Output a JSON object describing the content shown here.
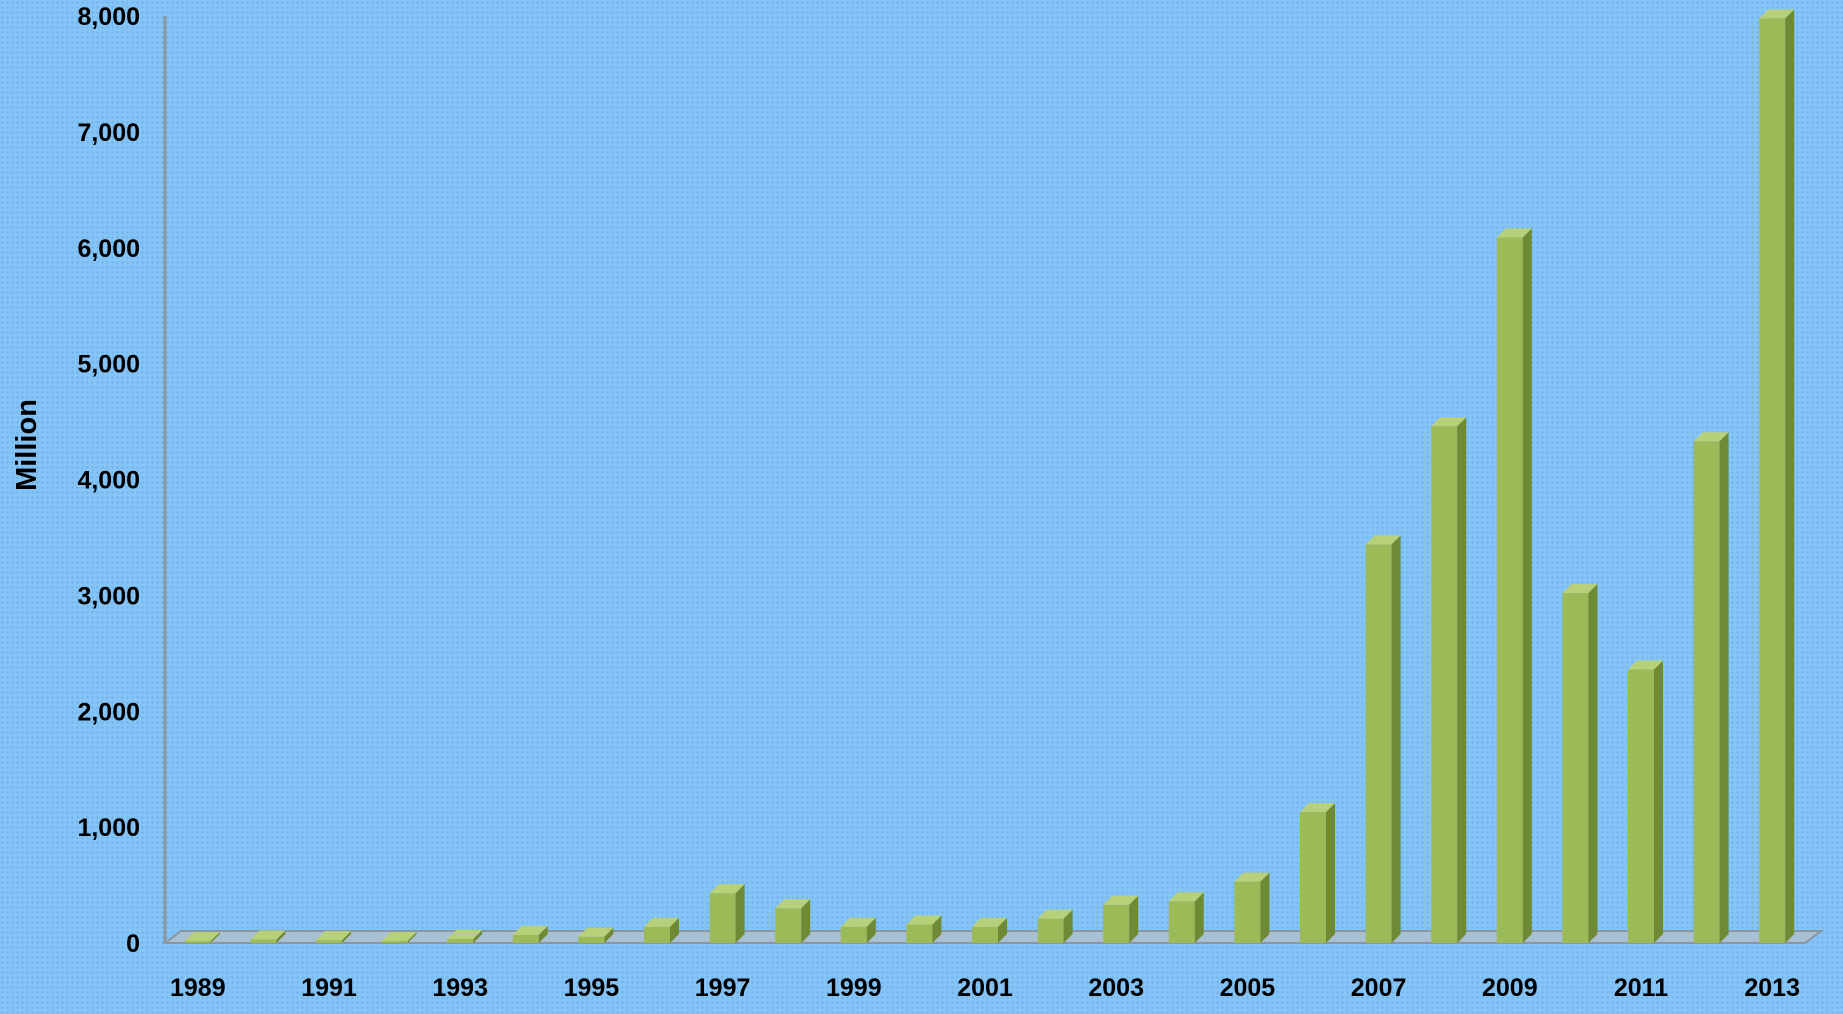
{
  "chart_data": {
    "type": "bar",
    "title": "",
    "xlabel": "",
    "ylabel": "Million",
    "ylim": [
      0,
      8000
    ],
    "yticks": [
      0,
      1000,
      2000,
      3000,
      4000,
      5000,
      6000,
      7000,
      8000
    ],
    "ytick_labels": [
      "0",
      "1,000",
      "2,000",
      "3,000",
      "4,000",
      "5,000",
      "6,000",
      "7,000",
      "8,000"
    ],
    "categories": [
      "1989",
      "1990",
      "1991",
      "1992",
      "1993",
      "1994",
      "1995",
      "1996",
      "1997",
      "1998",
      "1999",
      "2000",
      "2001",
      "2002",
      "2003",
      "2004",
      "2005",
      "2006",
      "2007",
      "2008",
      "2009",
      "2010",
      "2011",
      "2012",
      "2013"
    ],
    "xtick_labels": [
      "1989",
      "",
      "1991",
      "",
      "1993",
      "",
      "1995",
      "",
      "1997",
      "",
      "1999",
      "",
      "2001",
      "",
      "2003",
      "",
      "2005",
      "",
      "2007",
      "",
      "2009",
      "",
      "2011",
      "",
      "2013"
    ],
    "values": [
      5,
      30,
      25,
      15,
      35,
      70,
      55,
      140,
      430,
      300,
      140,
      160,
      140,
      210,
      330,
      360,
      530,
      1130,
      3440,
      4460,
      6090,
      3020,
      2360,
      4330,
      7980
    ],
    "grid": false,
    "legend": "none",
    "colors": {
      "bar_front": "#9bbb59",
      "bar_side": "#6e8a34",
      "bar_top": "#b7d17a",
      "axis": "#8a96a2",
      "floor": "#a9bfd2"
    }
  }
}
